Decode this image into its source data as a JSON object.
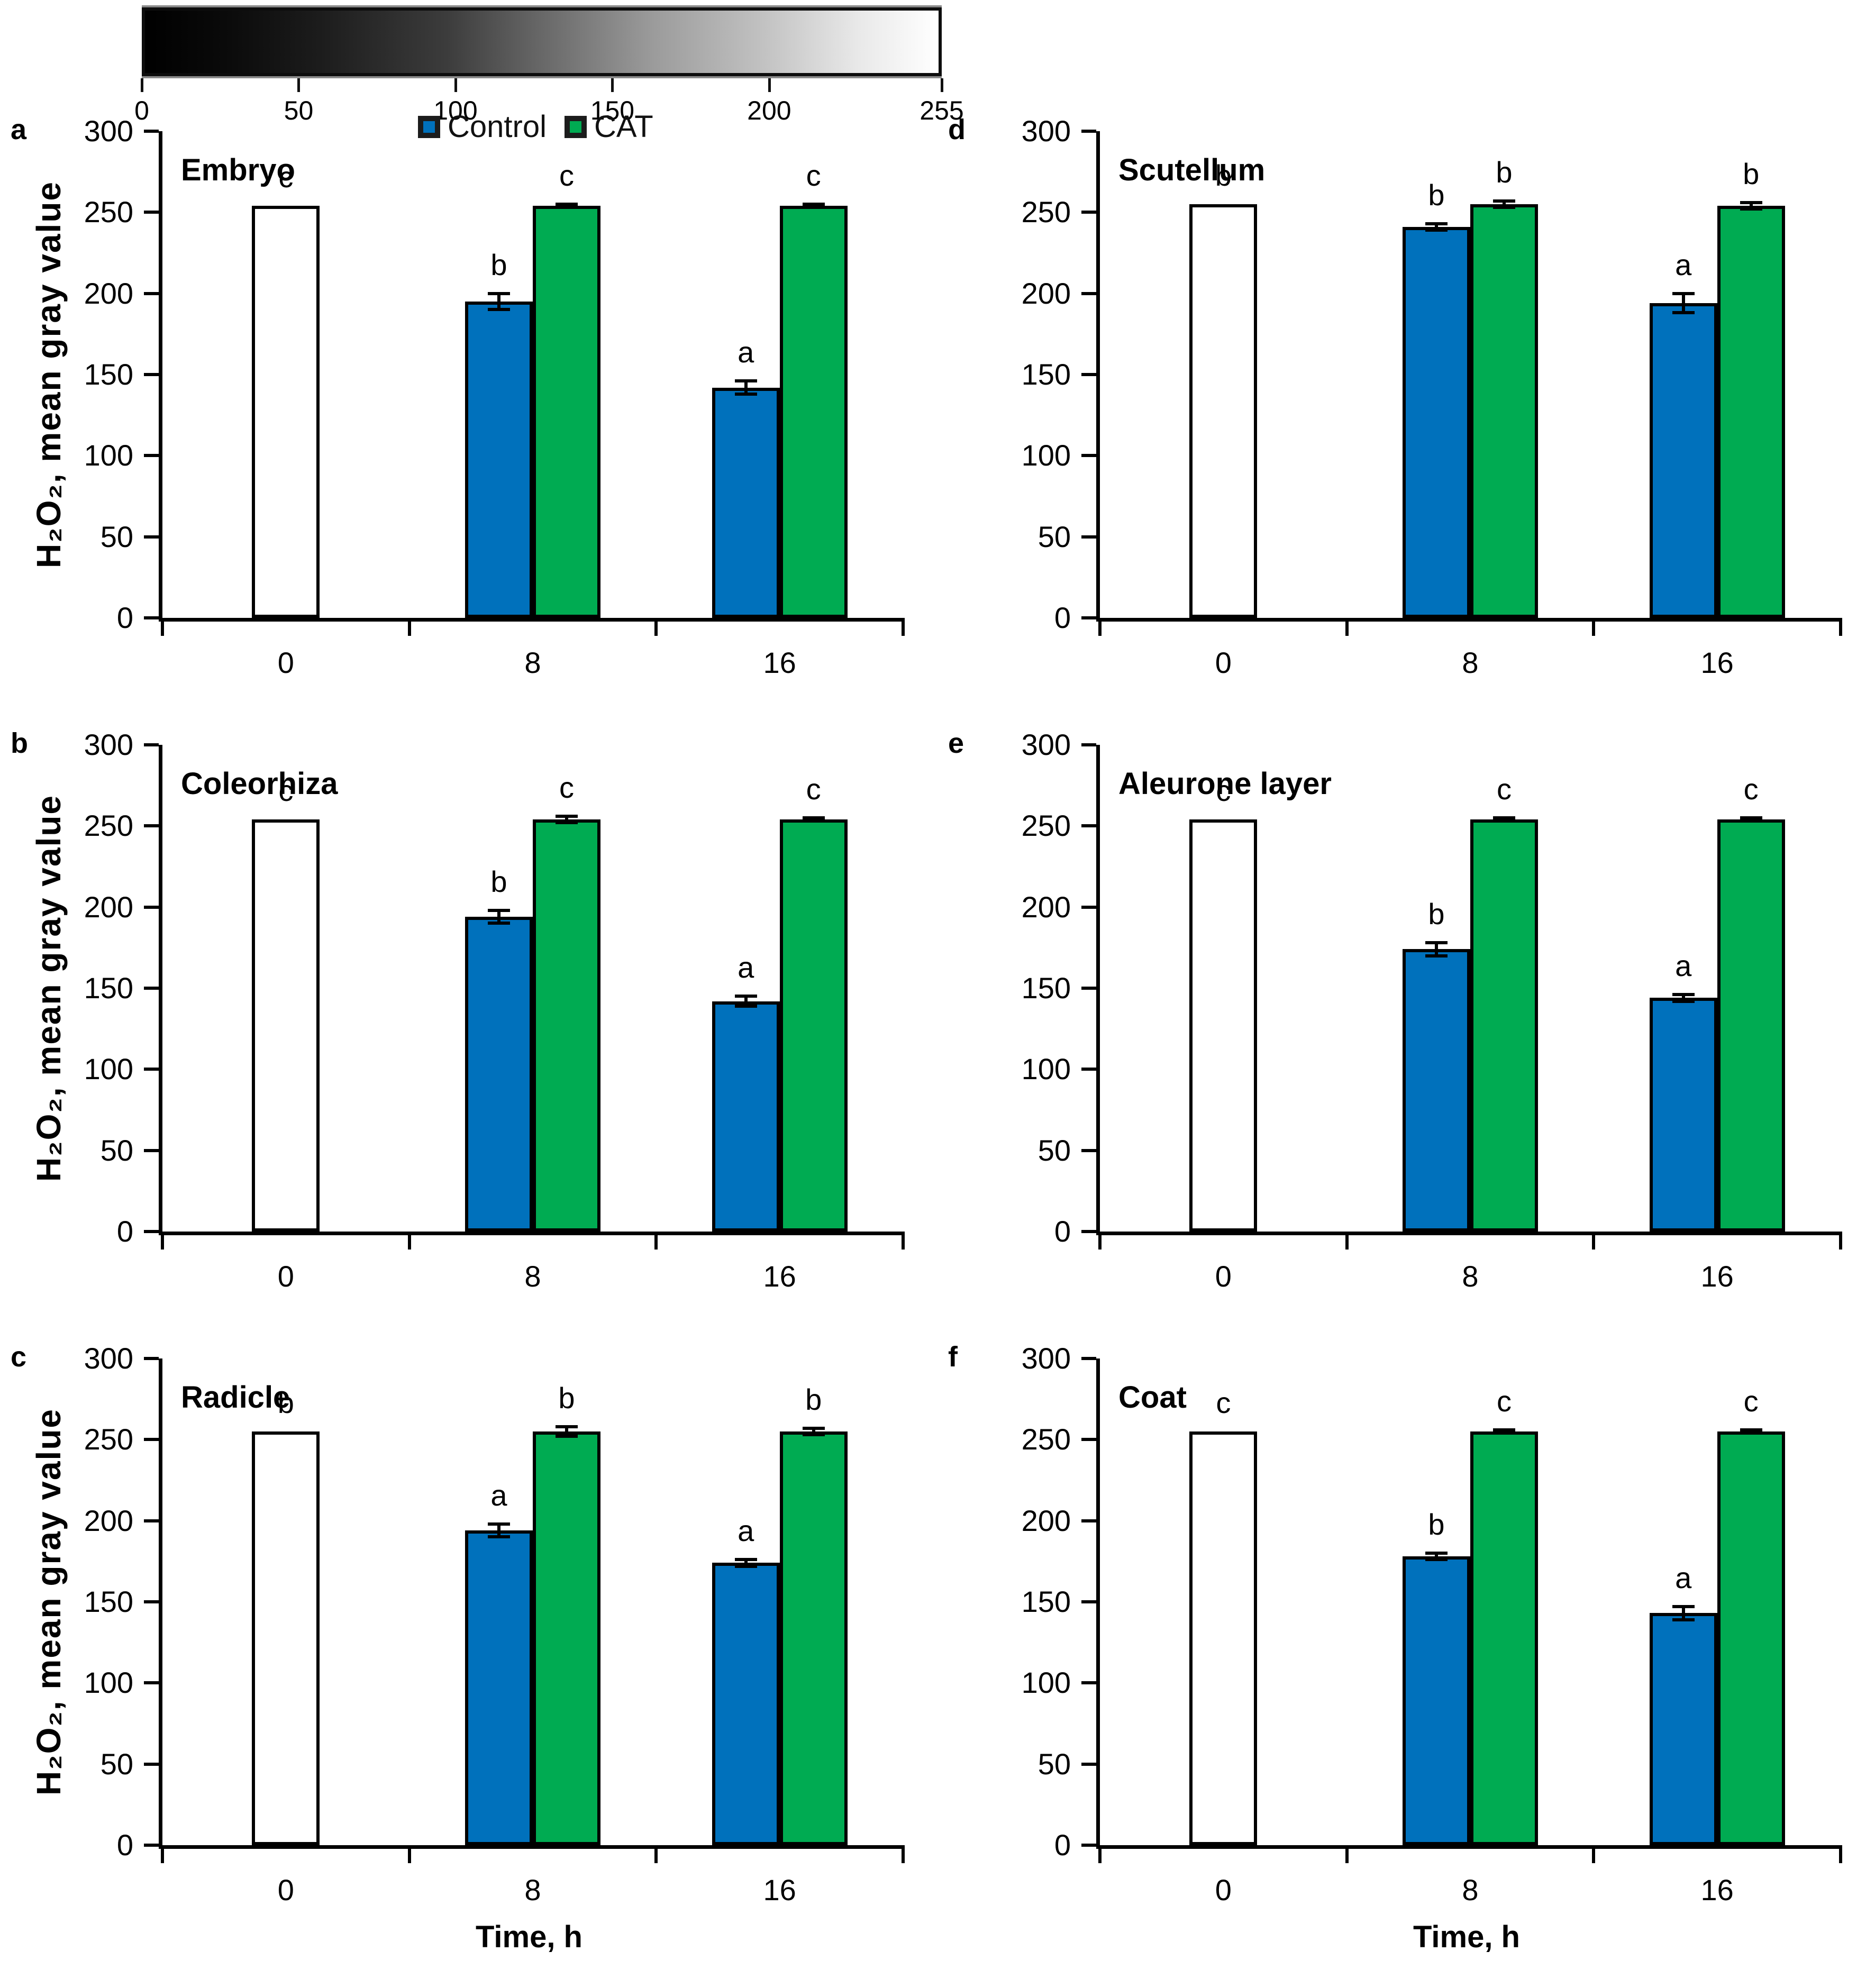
{
  "colorbar": {
    "min": 0,
    "max": 255,
    "tick_values": [
      0,
      50,
      100,
      150,
      200,
      255
    ],
    "tick_labels": [
      "0",
      "50",
      "100",
      "150",
      "200",
      "255"
    ]
  },
  "legend": {
    "items": [
      {
        "label": "Control",
        "series": "Control"
      },
      {
        "label": "CAT",
        "series": "CAT"
      }
    ]
  },
  "series_colors": {
    "Initial": "#FFFFFF",
    "Control": "#0071BC",
    "CAT": "#00AB52"
  },
  "axes": {
    "ylabel": "H₂O₂, mean gray value",
    "xlabel": "Time, h",
    "yticks": [
      0,
      50,
      100,
      150,
      200,
      250,
      300
    ],
    "ylim": [
      0,
      300
    ],
    "xticks": [
      "0",
      "8",
      "16"
    ]
  },
  "chart_data": [
    {
      "panel_letter": "a",
      "title": "Embryo",
      "type": "bar",
      "categories": [
        "0",
        "8",
        "16"
      ],
      "ylim": [
        0,
        300
      ],
      "bars": [
        {
          "category": "0",
          "series": "Initial",
          "value": 254,
          "error": 0,
          "sig_letter": "c"
        },
        {
          "category": "8",
          "series": "Control",
          "value": 195,
          "error": 5,
          "sig_letter": "b"
        },
        {
          "category": "8",
          "series": "CAT",
          "value": 254,
          "error": 1,
          "sig_letter": "c"
        },
        {
          "category": "16",
          "series": "Control",
          "value": 142,
          "error": 4,
          "sig_letter": "a"
        },
        {
          "category": "16",
          "series": "CAT",
          "value": 254,
          "error": 1,
          "sig_letter": "c"
        }
      ]
    },
    {
      "panel_letter": "b",
      "title": "Coleorhiza",
      "type": "bar",
      "categories": [
        "0",
        "8",
        "16"
      ],
      "ylim": [
        0,
        300
      ],
      "bars": [
        {
          "category": "0",
          "series": "Initial",
          "value": 254,
          "error": 0,
          "sig_letter": "c"
        },
        {
          "category": "8",
          "series": "Control",
          "value": 194,
          "error": 4,
          "sig_letter": "b"
        },
        {
          "category": "8",
          "series": "CAT",
          "value": 254,
          "error": 2,
          "sig_letter": "c"
        },
        {
          "category": "16",
          "series": "Control",
          "value": 142,
          "error": 3,
          "sig_letter": "a"
        },
        {
          "category": "16",
          "series": "CAT",
          "value": 254,
          "error": 1,
          "sig_letter": "c"
        }
      ]
    },
    {
      "panel_letter": "c",
      "title": "Radicle",
      "type": "bar",
      "categories": [
        "0",
        "8",
        "16"
      ],
      "ylim": [
        0,
        300
      ],
      "bars": [
        {
          "category": "0",
          "series": "Initial",
          "value": 255,
          "error": 0,
          "sig_letter": "b"
        },
        {
          "category": "8",
          "series": "Control",
          "value": 194,
          "error": 4,
          "sig_letter": "a"
        },
        {
          "category": "8",
          "series": "CAT",
          "value": 255,
          "error": 3,
          "sig_letter": "b"
        },
        {
          "category": "16",
          "series": "Control",
          "value": 174,
          "error": 2,
          "sig_letter": "a"
        },
        {
          "category": "16",
          "series": "CAT",
          "value": 255,
          "error": 2,
          "sig_letter": "b"
        }
      ]
    },
    {
      "panel_letter": "d",
      "title": "Scutellum",
      "type": "bar",
      "categories": [
        "0",
        "8",
        "16"
      ],
      "ylim": [
        0,
        300
      ],
      "bars": [
        {
          "category": "0",
          "series": "Initial",
          "value": 255,
          "error": 0,
          "sig_letter": "b"
        },
        {
          "category": "8",
          "series": "Control",
          "value": 241,
          "error": 2,
          "sig_letter": "b"
        },
        {
          "category": "8",
          "series": "CAT",
          "value": 255,
          "error": 2,
          "sig_letter": "b"
        },
        {
          "category": "16",
          "series": "Control",
          "value": 194,
          "error": 6,
          "sig_letter": "a"
        },
        {
          "category": "16",
          "series": "CAT",
          "value": 254,
          "error": 2,
          "sig_letter": "b"
        }
      ]
    },
    {
      "panel_letter": "e",
      "title": "Aleurone layer",
      "type": "bar",
      "categories": [
        "0",
        "8",
        "16"
      ],
      "ylim": [
        0,
        300
      ],
      "bars": [
        {
          "category": "0",
          "series": "Initial",
          "value": 254,
          "error": 0,
          "sig_letter": "c"
        },
        {
          "category": "8",
          "series": "Control",
          "value": 174,
          "error": 4,
          "sig_letter": "b"
        },
        {
          "category": "8",
          "series": "CAT",
          "value": 254,
          "error": 1,
          "sig_letter": "c"
        },
        {
          "category": "16",
          "series": "Control",
          "value": 144,
          "error": 2,
          "sig_letter": "a"
        },
        {
          "category": "16",
          "series": "CAT",
          "value": 254,
          "error": 1,
          "sig_letter": "c"
        }
      ]
    },
    {
      "panel_letter": "f",
      "title": "Coat",
      "type": "bar",
      "categories": [
        "0",
        "8",
        "16"
      ],
      "ylim": [
        0,
        300
      ],
      "bars": [
        {
          "category": "0",
          "series": "Initial",
          "value": 255,
          "error": 0,
          "sig_letter": "c"
        },
        {
          "category": "8",
          "series": "Control",
          "value": 178,
          "error": 2,
          "sig_letter": "b"
        },
        {
          "category": "8",
          "series": "CAT",
          "value": 255,
          "error": 1,
          "sig_letter": "c"
        },
        {
          "category": "16",
          "series": "Control",
          "value": 143,
          "error": 4,
          "sig_letter": "a"
        },
        {
          "category": "16",
          "series": "CAT",
          "value": 255,
          "error": 1,
          "sig_letter": "c"
        }
      ]
    }
  ]
}
